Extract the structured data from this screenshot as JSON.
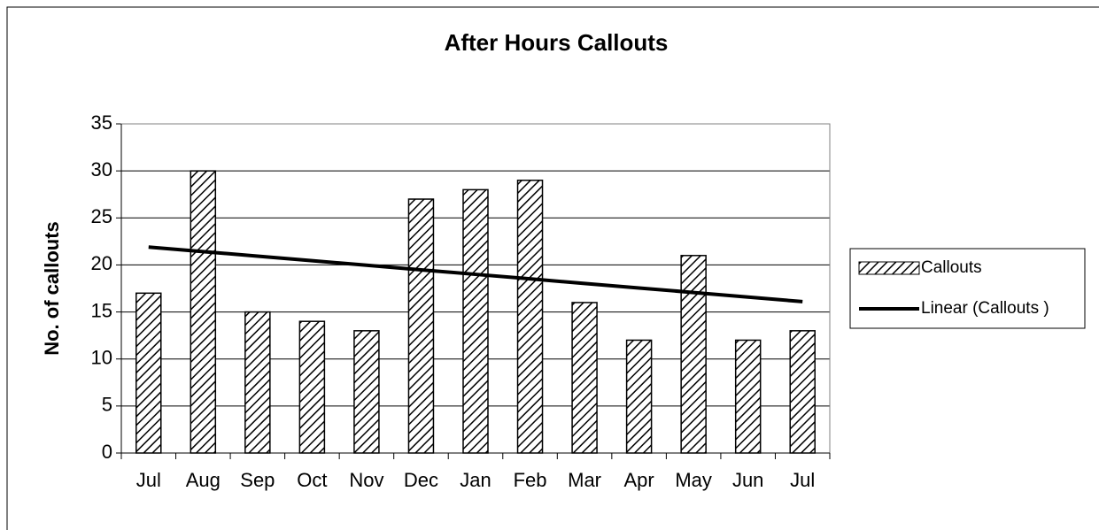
{
  "chart_data": {
    "type": "bar",
    "title": "After Hours Callouts",
    "y_label": "No. of callouts",
    "categories": [
      "Jul",
      "Aug",
      "Sep",
      "Oct",
      "Nov",
      "Dec",
      "Jan",
      "Feb",
      "Mar",
      "Apr",
      "May",
      "Jun",
      "Jul"
    ],
    "series": [
      {
        "name": "Callouts",
        "type": "bar",
        "color": "#000000",
        "pattern": "hatch",
        "values": [
          17,
          30,
          15,
          14,
          13,
          27,
          28,
          29,
          16,
          12,
          21,
          12,
          13
        ]
      },
      {
        "name": "Linear (Callouts )",
        "type": "line",
        "color": "#000000",
        "values": [
          21.9,
          21.42,
          20.93,
          20.45,
          19.97,
          19.48,
          19.0,
          18.52,
          18.03,
          17.55,
          17.07,
          16.58,
          16.1
        ]
      }
    ],
    "ylim": [
      0,
      35
    ],
    "yticks": [
      0,
      5,
      10,
      15,
      20,
      25,
      30,
      35
    ],
    "grid": true,
    "legend": "right"
  }
}
